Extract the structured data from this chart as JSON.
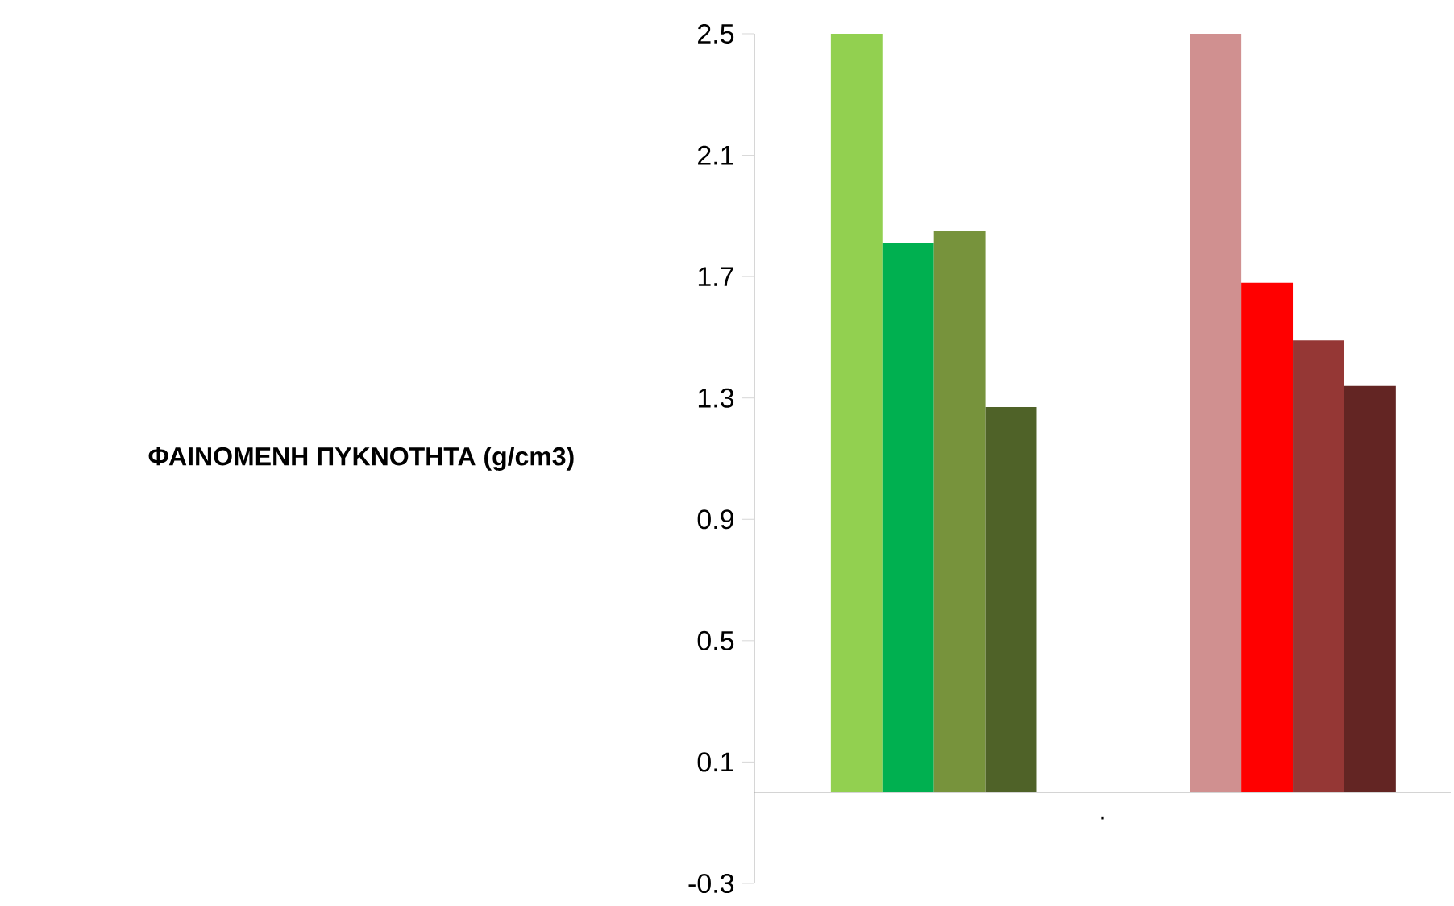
{
  "chart_data": {
    "type": "bar",
    "ylabel": "ΦΑΙΝΟΜΕΝΗ ΠΥΚΝΟΤΗΤΑ (g/cm3)",
    "categories": [
      null,
      null
    ],
    "series": [
      {
        "colors": [
          "#92d050",
          "#d09090"
        ],
        "values": [
          2.5,
          2.5
        ]
      },
      {
        "colors": [
          "#00b050",
          "#ff0000"
        ],
        "values": [
          1.81,
          1.68
        ]
      },
      {
        "colors": [
          "#77933c",
          "#953735"
        ],
        "values": [
          1.85,
          1.49
        ]
      },
      {
        "colors": [
          "#4f6228",
          "#632523"
        ],
        "values": [
          1.27,
          1.34
        ]
      }
    ],
    "ylim": [
      -0.3,
      2.5
    ],
    "yticks": [
      -0.3,
      0.1,
      0.5,
      0.9,
      1.3,
      1.7,
      2.1,
      2.5
    ],
    "grid": false,
    "annotations": [
      "."
    ]
  }
}
